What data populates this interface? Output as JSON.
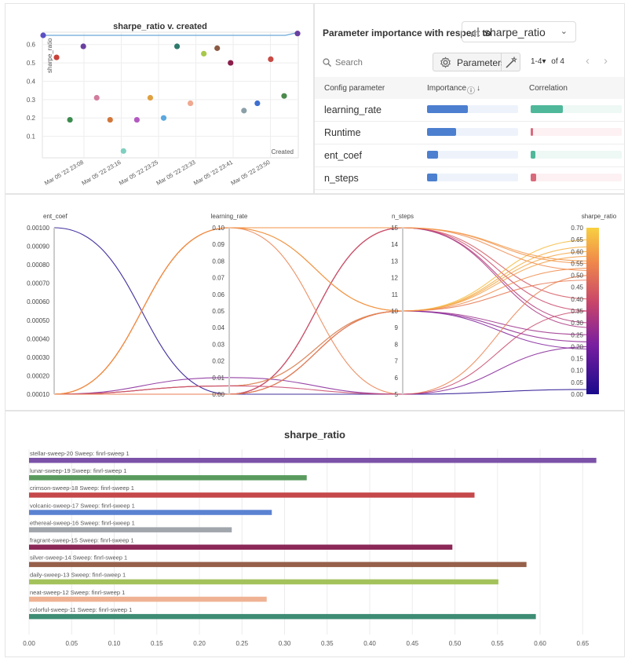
{
  "scatter": {
    "title": "sharpe_ratio v. created",
    "ylabel": "sharpe_ratio",
    "xlabel": "Created",
    "y_ticks": [
      "0.1",
      "0.2",
      "0.3",
      "0.4",
      "0.5",
      "0.6"
    ],
    "x_ticks": [
      "Mar 05 '22 23:08",
      "Mar 05 '22 23:16",
      "Mar 05 '22 23:25",
      "Mar 05 '22 23:33",
      "Mar 05 '22 23:41",
      "Mar 05 '22 23:50"
    ]
  },
  "importance": {
    "title": "Parameter importance with respect to",
    "metric": "sharpe_ratio",
    "search_placeholder": "Search",
    "parameters_button": "Parameters",
    "pager_range": "1-4",
    "pager_caret": "▾",
    "pager_total": "of 4",
    "prev_arrow": "‹",
    "next_arrow": "›",
    "col_config": "Config parameter",
    "col_importance": "Importance",
    "col_correlation": "Correlation",
    "info_icon": "ⓘ",
    "sort_arrow": "↓",
    "rows": [
      {
        "name": "learning_rate",
        "importance": 0.45,
        "correlation": 0.35
      },
      {
        "name": "Runtime",
        "importance": 0.32,
        "correlation": -0.03
      },
      {
        "name": "ent_coef",
        "importance": 0.12,
        "correlation": 0.05
      },
      {
        "name": "n_steps",
        "importance": 0.11,
        "correlation": -0.06
      }
    ]
  },
  "parcoords": {
    "axes": [
      "ent_coef",
      "learning_rate",
      "n_steps",
      "sharpe_ratio"
    ],
    "ent_coef_ticks": [
      "0.00100",
      "0.00090",
      "0.00080",
      "0.00070",
      "0.00060",
      "0.00050",
      "0.00040",
      "0.00030",
      "0.00020",
      "0.00010"
    ],
    "learning_rate_ticks": [
      "0.10",
      "0.09",
      "0.08",
      "0.07",
      "0.06",
      "0.05",
      "0.04",
      "0.03",
      "0.02",
      "0.01",
      "0.00"
    ],
    "n_steps_ticks": [
      "15",
      "14",
      "13",
      "12",
      "11",
      "10",
      "9",
      "8",
      "7",
      "6",
      "5"
    ],
    "sharpe_ticks": [
      "0.70",
      "0.65",
      "0.60",
      "0.55",
      "0.50",
      "0.45",
      "0.40",
      "0.35",
      "0.30",
      "0.25",
      "0.20",
      "0.15",
      "0.10",
      "0.05",
      "0.00"
    ]
  },
  "chart_data": [
    {
      "type": "scatter",
      "title": "sharpe_ratio v. created",
      "xlabel": "Created",
      "ylabel": "sharpe_ratio",
      "ylim": [
        0.0,
        0.65
      ],
      "line_of_best_value": [
        [
          0,
          0.65
        ],
        [
          20,
          0.65
        ],
        [
          21,
          0.665
        ]
      ],
      "points": [
        {
          "x": 0,
          "y": 0.65,
          "color": "#5b4fc4"
        },
        {
          "x": 1,
          "y": 0.53,
          "color": "#c8423a"
        },
        {
          "x": 2,
          "y": 0.19,
          "color": "#3b8c4e"
        },
        {
          "x": 3,
          "y": 0.59,
          "color": "#6a3fa0"
        },
        {
          "x": 4,
          "y": 0.31,
          "color": "#d27c9e"
        },
        {
          "x": 5,
          "y": 0.19,
          "color": "#d2773a"
        },
        {
          "x": 6,
          "y": 0.02,
          "color": "#7fcfc0"
        },
        {
          "x": 7,
          "y": 0.19,
          "color": "#b25ac0"
        },
        {
          "x": 8,
          "y": 0.31,
          "color": "#e0a040"
        },
        {
          "x": 9,
          "y": 0.2,
          "color": "#5aa8e0"
        },
        {
          "x": 10,
          "y": 0.59,
          "color": "#2f7a6c"
        },
        {
          "x": 11,
          "y": 0.28,
          "color": "#f0a890"
        },
        {
          "x": 12,
          "y": 0.55,
          "color": "#a8c84a"
        },
        {
          "x": 13,
          "y": 0.58,
          "color": "#8a5a44"
        },
        {
          "x": 14,
          "y": 0.5,
          "color": "#8a1e4a"
        },
        {
          "x": 15,
          "y": 0.24,
          "color": "#8aa0a8"
        },
        {
          "x": 16,
          "y": 0.28,
          "color": "#3f6fd0"
        },
        {
          "x": 17,
          "y": 0.52,
          "color": "#c84a44"
        },
        {
          "x": 18,
          "y": 0.32,
          "color": "#4a8a4e"
        },
        {
          "x": 19,
          "y": 0.66,
          "color": "#6a3fa0"
        }
      ]
    },
    {
      "type": "parallel-coordinates",
      "axes": [
        {
          "name": "ent_coef",
          "range": [
            0.0001,
            0.001
          ]
        },
        {
          "name": "learning_rate",
          "range": [
            0.0,
            0.1
          ]
        },
        {
          "name": "n_steps",
          "range": [
            5,
            15
          ]
        },
        {
          "name": "sharpe_ratio",
          "range": [
            0.0,
            0.7
          ]
        }
      ],
      "colorscale": [
        "#1a0a8c",
        "#7a1fa0",
        "#c8456a",
        "#f08a4a",
        "#f8d040"
      ],
      "lines": [
        [
          0.0001,
          0.0,
          15,
          0.35
        ],
        [
          0.0001,
          0.0,
          15,
          0.3
        ],
        [
          0.0001,
          0.0,
          15,
          0.28
        ],
        [
          0.0001,
          0.0,
          10,
          0.25
        ],
        [
          0.0001,
          0.0,
          10,
          0.22
        ],
        [
          0.0001,
          0.005,
          10,
          0.19
        ],
        [
          0.0001,
          0.0,
          15,
          0.4
        ],
        [
          0.0001,
          0.1,
          10,
          0.6
        ],
        [
          0.0001,
          0.1,
          10,
          0.65
        ],
        [
          0.0001,
          0.1,
          15,
          0.55
        ],
        [
          0.0001,
          0.1,
          15,
          0.52
        ],
        [
          0.0001,
          0.1,
          5,
          0.5
        ],
        [
          0.001,
          0.0,
          5,
          0.02
        ],
        [
          0.0001,
          0.01,
          5,
          0.2
        ],
        [
          0.0001,
          0.005,
          10,
          0.58
        ],
        [
          0.0001,
          0.0,
          10,
          0.62
        ],
        [
          0.0001,
          0.1,
          15,
          0.56
        ],
        [
          0.0001,
          0.005,
          5,
          0.35
        ],
        [
          0.0001,
          0.0,
          10,
          0.48
        ],
        [
          0.0001,
          0.1,
          10,
          0.53
        ]
      ]
    },
    {
      "type": "bar",
      "orientation": "horizontal",
      "title": "sharpe_ratio",
      "xlim": [
        0.0,
        0.67
      ],
      "x_ticks": [
        "0.00",
        "0.05",
        "0.10",
        "0.15",
        "0.20",
        "0.25",
        "0.30",
        "0.35",
        "0.40",
        "0.45",
        "0.50",
        "0.55",
        "0.60",
        "0.65"
      ],
      "bars": [
        {
          "label": "stellar-sweep-20 Sweep: finrl-sweep 1",
          "value": 0.666,
          "color": "#7b52a8"
        },
        {
          "label": "lunar-sweep-19 Sweep: finrl-sweep 1",
          "value": 0.326,
          "color": "#5a9a5e"
        },
        {
          "label": "crimson-sweep-18 Sweep: finrl-sweep 1",
          "value": 0.523,
          "color": "#c5484a"
        },
        {
          "label": "volcanic-sweep-17 Sweep: finrl-sweep 1",
          "value": 0.285,
          "color": "#5b82d2"
        },
        {
          "label": "ethereal-sweep-16 Sweep: finrl-sweep 1",
          "value": 0.238,
          "color": "#a0a6ac"
        },
        {
          "label": "fragrant-sweep-15 Sweep: finrl-sweep 1",
          "value": 0.497,
          "color": "#8c2858"
        },
        {
          "label": "silver-sweep-14 Sweep: finrl-sweep 1",
          "value": 0.584,
          "color": "#96604a"
        },
        {
          "label": "daily-sweep-13 Sweep: finrl-sweep 1",
          "value": 0.551,
          "color": "#a4c25c"
        },
        {
          "label": "neat-sweep-12 Sweep: finrl-sweep 1",
          "value": 0.279,
          "color": "#efb394"
        },
        {
          "label": "colorful-sweep-11 Sweep: finrl-sweep 1",
          "value": 0.595,
          "color": "#3e8c74"
        }
      ]
    }
  ]
}
